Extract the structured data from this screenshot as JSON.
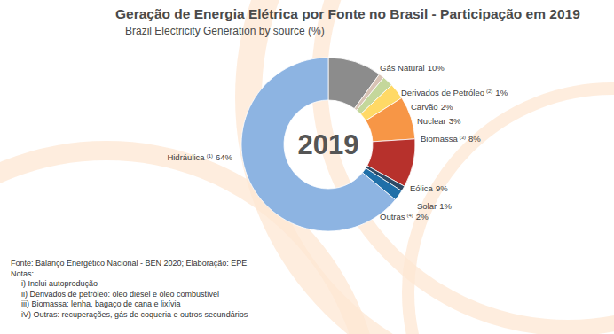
{
  "chart_data": {
    "type": "donut",
    "title": "Geração de Energia Elétrica por Fonte no Brasil - Participação em 2019",
    "subtitle": "Brazil Electricity Generation by source (%)",
    "center_text": "2019",
    "categories": [
      "Gás Natural",
      "Derivados de Petróleo",
      "Carvão",
      "Nuclear",
      "Biomassa",
      "Eólica",
      "Solar",
      "Outras",
      "Hidráulica"
    ],
    "label_notes": [
      null,
      "(2)",
      null,
      null,
      "(3)",
      null,
      null,
      "(4)",
      "(1)"
    ],
    "values": [
      10,
      1,
      2,
      3,
      8,
      9,
      1,
      2,
      64
    ],
    "value_labels": [
      "10%",
      "1%",
      "2%",
      "3%",
      "8%",
      "9%",
      "1%",
      "2%",
      "64%"
    ],
    "colors": [
      "#8c8c8c",
      "#d8c3b5",
      "#c4d79b",
      "#ffd966",
      "#f79646",
      "#b7312c",
      "#2f4b66",
      "#1f6fa8",
      "#8db4e2"
    ],
    "data_labels": true,
    "footnotes": [
      "Fonte: Balanço Energético Nacional - BEN 2020; Elaboração: EPE",
      "Notas:",
      "i) Inclui autoprodução",
      "ii) Derivados de petróleo: óleo diesel e óleo combustível",
      "iii) Biomassa: lenha, bagaço de cana e lixívia",
      "iV) Outras: recuperações, gás de coqueria e outros secundários"
    ]
  }
}
